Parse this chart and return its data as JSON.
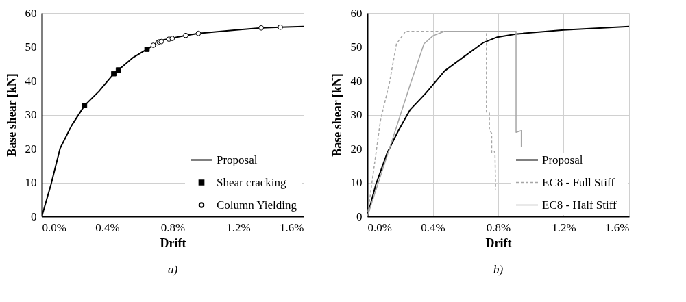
{
  "chart_data": [
    {
      "type": "line",
      "xlabel": "Drift",
      "ylabel": "Base shear [kN]",
      "annotations": [
        "a)"
      ],
      "xlim": [
        0,
        1.6
      ],
      "ylim": [
        0,
        60
      ],
      "xticks": [
        {
          "value": 0,
          "label": "0.0%"
        },
        {
          "value": 0.4,
          "label": "0.4%"
        },
        {
          "value": 0.8,
          "label": "0.8%"
        },
        {
          "value": 1.2,
          "label": "1.2%"
        },
        {
          "value": 1.6,
          "label": "1.6%"
        }
      ],
      "yticks": [
        0,
        10,
        20,
        30,
        40,
        50,
        60
      ],
      "grid": true,
      "legend": "bottom right",
      "series": [
        {
          "name": "Proposal",
          "type": "line",
          "color": "#000000",
          "marker": "none",
          "line_style": "solid",
          "x": [
            0,
            0.056,
            0.112,
            0.182,
            0.261,
            0.349,
            0.44,
            0.468,
            0.559,
            0.643,
            0.727,
            0.797,
            0.88,
            0.957,
            1.188,
            1.341,
            1.458,
            1.6
          ],
          "values": [
            0,
            9.4,
            20.1,
            26.8,
            32.7,
            36.9,
            42.1,
            43.2,
            46.9,
            49.3,
            51.9,
            52.6,
            53.4,
            54.0,
            55.0,
            55.6,
            55.8,
            56.0
          ]
        },
        {
          "name": "Shear cracking",
          "type": "scatter",
          "color": "#000000",
          "marker": "square",
          "x": [
            0.261,
            0.44,
            0.468,
            0.643
          ],
          "values": [
            32.7,
            42.1,
            43.2,
            49.3
          ]
        },
        {
          "name": "Column Yielding",
          "type": "scatter",
          "color": "#000000",
          "marker": "circle",
          "x": [
            0.681,
            0.709,
            0.717,
            0.73,
            0.777,
            0.797,
            0.88,
            0.957,
            1.341,
            1.458
          ],
          "values": [
            50.5,
            51.2,
            51.5,
            51.6,
            52.3,
            52.5,
            53.4,
            54.0,
            55.6,
            55.8
          ]
        }
      ]
    },
    {
      "type": "line",
      "xlabel": "Drift",
      "ylabel": "Base shear [kN]",
      "annotations": [
        "b)"
      ],
      "xlim": [
        0,
        1.6
      ],
      "ylim": [
        0,
        60
      ],
      "xticks": [
        {
          "value": 0,
          "label": "0.0%"
        },
        {
          "value": 0.4,
          "label": "0.4%"
        },
        {
          "value": 0.8,
          "label": "0.8%"
        },
        {
          "value": 1.2,
          "label": "1.2%"
        },
        {
          "value": 1.6,
          "label": "1.6%"
        }
      ],
      "yticks": [
        0,
        10,
        20,
        30,
        40,
        50,
        60
      ],
      "grid": true,
      "legend": "bottom right",
      "series": [
        {
          "name": "Proposal",
          "type": "line",
          "color": "#000000",
          "marker": "none",
          "line_style": "solid",
          "x": [
            0,
            0.052,
            0.122,
            0.192,
            0.262,
            0.36,
            0.472,
            0.584,
            0.71,
            0.794,
            0.906,
            1.2,
            1.6
          ],
          "values": [
            0,
            9.4,
            18.8,
            25.5,
            31.5,
            36.5,
            42.9,
            46.9,
            51.3,
            52.9,
            53.8,
            55.0,
            56.0
          ]
        },
        {
          "name": "EC8 - Full Stiff",
          "type": "line",
          "color": "#a6a6a6",
          "marker": "none",
          "line_style": "dashed",
          "x": [
            0,
            0.08,
            0.136,
            0.178,
            0.234,
            0.728,
            0.728,
            0.746,
            0.746,
            0.76,
            0.76,
            0.78,
            0.784
          ],
          "values": [
            0,
            28.2,
            39.6,
            50.9,
            54.6,
            54.6,
            30.8,
            30.5,
            25.5,
            24.5,
            18.8,
            19.1,
            8.0
          ]
        },
        {
          "name": "EC8 - Half Stiff",
          "type": "line",
          "color": "#a6a6a6",
          "marker": "none",
          "line_style": "solid",
          "x": [
            0,
            0.136,
            0.262,
            0.346,
            0.402,
            0.472,
            0.909,
            0.909,
            0.941,
            0.941
          ],
          "values": [
            0,
            20.1,
            38.9,
            50.9,
            53.3,
            54.6,
            54.6,
            24.8,
            25.3,
            20.4
          ]
        }
      ]
    }
  ]
}
